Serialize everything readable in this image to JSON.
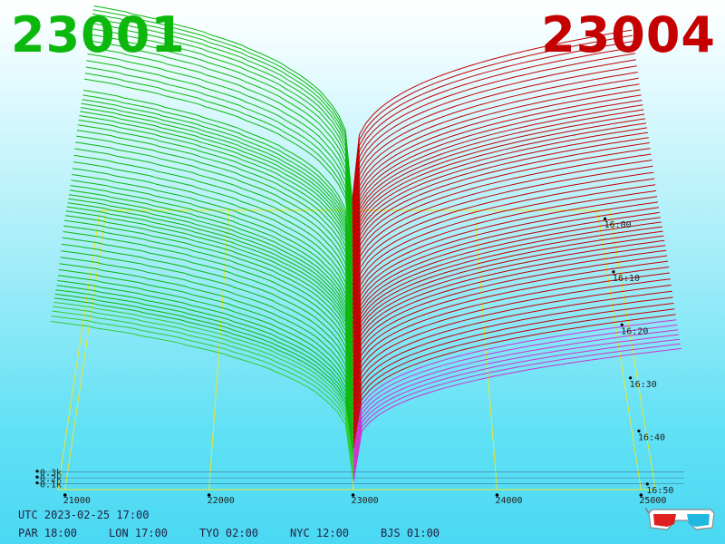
{
  "header": {
    "left_price": "23001",
    "right_price": "23004"
  },
  "footer": {
    "utc": "UTC 2023-02-25 17:00",
    "zones": [
      {
        "label": "PAR 18:00"
      },
      {
        "label": "LON 17:00"
      },
      {
        "label": "TYO 02:00"
      },
      {
        "label": "NYC 12:00"
      },
      {
        "label": "BJS 01:00"
      }
    ]
  },
  "colors": {
    "bid": "#0db80d",
    "ask": "#c40000",
    "grid": "#e8e830",
    "baseline": "#cc33cc"
  },
  "chart_data": {
    "type": "area",
    "x_axis": {
      "ticks": [
        "21000",
        "22000",
        "23000",
        "24000",
        "25000"
      ]
    },
    "volume_axis": {
      "ticks": [
        "0.1k",
        "0.2k",
        "0.3k"
      ]
    },
    "time_axis": {
      "ticks": [
        "16:00",
        "16:10",
        "16:20",
        "16:30",
        "16:40",
        "16:50"
      ]
    },
    "series": [
      {
        "name": "23001",
        "side": "bid",
        "price_range": [
          20800,
          23001
        ],
        "max_cumulative_volume": 1.2
      },
      {
        "name": "23004",
        "side": "ask",
        "price_range": [
          23004,
          25300
        ],
        "max_cumulative_volume": 0.9
      }
    ],
    "snapshots": 60
  },
  "icons": {
    "glasses": "3d-glasses-icon"
  }
}
